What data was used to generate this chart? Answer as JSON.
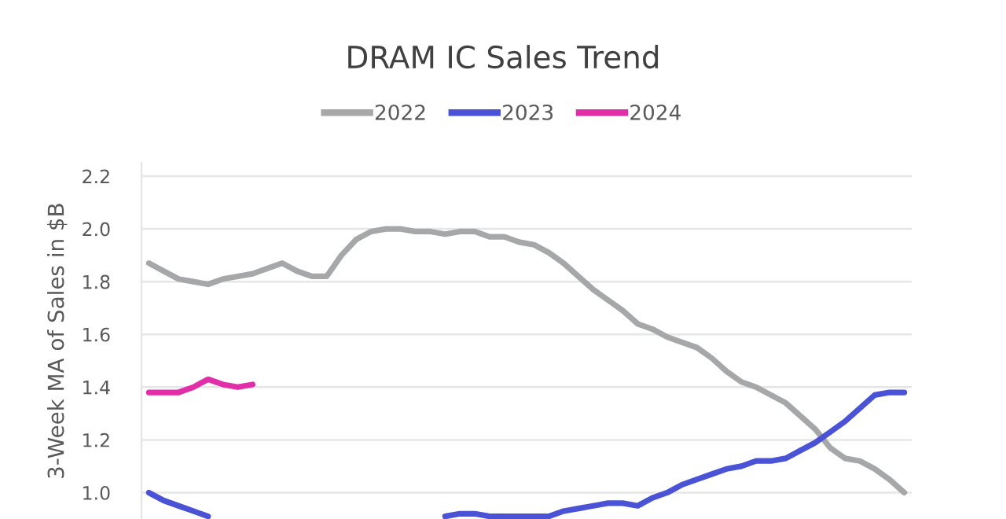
{
  "chart_data": {
    "type": "line",
    "title": "DRAM IC Sales Trend",
    "ylabel": "3-Week MA of Sales in $B",
    "categories": [
      null,
      null,
      null,
      null,
      null,
      null,
      null,
      null,
      null,
      null,
      null,
      null,
      null,
      null,
      null,
      null,
      null,
      null,
      null,
      null,
      null,
      null,
      null,
      null,
      null,
      null,
      null,
      null,
      null,
      null,
      null,
      null,
      null,
      null,
      null,
      null,
      null,
      null,
      null,
      null,
      null,
      null,
      null,
      null,
      null,
      null,
      null,
      null,
      null,
      null,
      null,
      null
    ],
    "series": [
      {
        "name": "2022",
        "color": "#a5a7a8",
        "values": [
          1.87,
          1.84,
          1.81,
          1.8,
          1.79,
          1.81,
          1.82,
          1.83,
          1.85,
          1.87,
          1.84,
          1.82,
          1.82,
          1.9,
          1.96,
          1.99,
          2.0,
          2.0,
          1.99,
          1.99,
          1.98,
          1.99,
          1.99,
          1.97,
          1.97,
          1.95,
          1.94,
          1.91,
          1.87,
          1.82,
          1.77,
          1.73,
          1.69,
          1.64,
          1.62,
          1.59,
          1.57,
          1.55,
          1.51,
          1.46,
          1.42,
          1.4,
          1.37,
          1.34,
          1.29,
          1.24,
          1.17,
          1.13,
          1.12,
          1.09,
          1.05,
          1.0
        ]
      },
      {
        "name": "2023",
        "color": "#4a52d6",
        "values": [
          1.0,
          0.97,
          0.95,
          0.93,
          0.91,
          null,
          null,
          null,
          null,
          null,
          null,
          null,
          null,
          null,
          null,
          null,
          null,
          null,
          null,
          null,
          0.91,
          0.92,
          0.92,
          0.91,
          0.91,
          0.91,
          0.91,
          0.91,
          0.93,
          0.94,
          0.95,
          0.96,
          0.96,
          0.95,
          0.98,
          1.0,
          1.03,
          1.05,
          1.07,
          1.09,
          1.1,
          1.12,
          1.12,
          1.13,
          1.16,
          1.19,
          1.23,
          1.27,
          1.32,
          1.37,
          1.38,
          1.38
        ]
      },
      {
        "name": "2024",
        "color": "#e02fa8",
        "values": [
          1.38,
          1.38,
          1.38,
          1.4,
          1.43,
          1.41,
          1.4,
          1.41,
          null,
          null,
          null,
          null,
          null,
          null,
          null,
          null,
          null,
          null,
          null,
          null,
          null,
          null,
          null,
          null,
          null,
          null,
          null,
          null,
          null,
          null,
          null,
          null,
          null,
          null,
          null,
          null,
          null,
          null,
          null,
          null,
          null,
          null,
          null,
          null,
          null,
          null,
          null,
          null,
          null,
          null,
          null,
          null
        ]
      }
    ],
    "ylim": [
      0.9,
      2.25
    ],
    "yticks": [
      {
        "value": 1.0,
        "label": "1.0"
      },
      {
        "value": 1.2,
        "label": "1.2"
      },
      {
        "value": 1.4,
        "label": "1.4"
      },
      {
        "value": 1.6,
        "label": "1.6"
      },
      {
        "value": 1.8,
        "label": "1.8"
      },
      {
        "value": 2.0,
        "label": "2.0"
      },
      {
        "value": 2.2,
        "label": "2.2"
      }
    ],
    "grid": "y",
    "legend": "top",
    "tick_labels": "y",
    "marker": "none",
    "line_style": "solid"
  }
}
